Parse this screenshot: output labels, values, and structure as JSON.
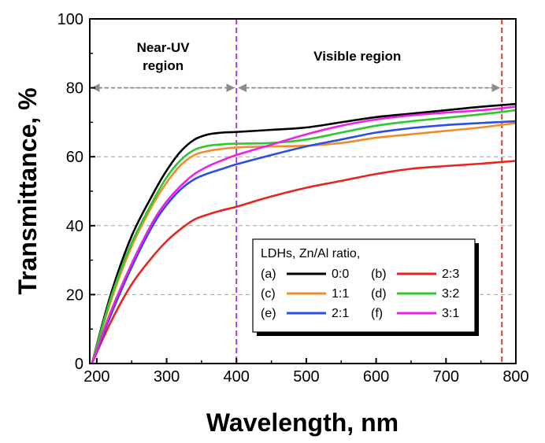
{
  "chart_data": {
    "type": "line",
    "xlabel": "Wavelength, nm",
    "ylabel": "Transmittance, %",
    "xlim": [
      190,
      800
    ],
    "ylim": [
      0,
      100
    ],
    "xticks": [
      200,
      300,
      400,
      500,
      600,
      700,
      800
    ],
    "yticks": [
      0,
      20,
      40,
      60,
      80,
      100
    ],
    "grid": "horizontal-dashed",
    "regions": [
      {
        "label_lines": [
          "Near-UV",
          "region"
        ],
        "from": 190,
        "to": 400
      },
      {
        "label_lines": [
          "Visible region"
        ],
        "from": 400,
        "to": 780
      }
    ],
    "vlines": [
      {
        "x": 400,
        "color": "#9b30d9"
      },
      {
        "x": 780,
        "color": "#e8241c"
      }
    ],
    "legend": {
      "title": "LDHs, Zn/Al ratio,",
      "position": "lower-right"
    },
    "series": [
      {
        "id": "a",
        "tag": "(a)",
        "ratio": "0:0",
        "color": "#000000",
        "x": [
          193,
          220,
          250,
          280,
          300,
          320,
          340,
          360,
          380,
          400,
          450,
          500,
          550,
          600,
          650,
          700,
          750,
          800
        ],
        "y": [
          0,
          20,
          37,
          49,
          56,
          61.5,
          65,
          66.5,
          67,
          67.2,
          67.8,
          68.5,
          70,
          71.5,
          72.5,
          73.5,
          74.5,
          75.3
        ]
      },
      {
        "id": "b",
        "tag": "(b)",
        "ratio": "2:3",
        "color": "#e8241c",
        "x": [
          193,
          220,
          250,
          280,
          300,
          320,
          340,
          360,
          380,
          400,
          450,
          500,
          550,
          600,
          650,
          700,
          750,
          800
        ],
        "y": [
          0,
          12,
          23,
          31,
          35.5,
          39,
          41.8,
          43.3,
          44.5,
          45.5,
          48.5,
          51,
          53,
          55,
          56.5,
          57.3,
          58,
          58.8
        ]
      },
      {
        "id": "c",
        "tag": "(c)",
        "ratio": "1:1",
        "color": "#f28c28",
        "x": [
          193,
          220,
          250,
          280,
          300,
          320,
          340,
          360,
          380,
          400,
          450,
          500,
          550,
          600,
          650,
          700,
          750,
          800
        ],
        "y": [
          0,
          18,
          34,
          46,
          52.5,
          57.5,
          60.5,
          61.7,
          62.3,
          62.7,
          63,
          63.2,
          64,
          65.5,
          66.5,
          67.5,
          68.5,
          69.8
        ]
      },
      {
        "id": "d",
        "tag": "(d)",
        "ratio": "3:2",
        "color": "#2ec82e",
        "x": [
          193,
          220,
          250,
          280,
          300,
          320,
          340,
          360,
          380,
          400,
          450,
          500,
          550,
          600,
          650,
          700,
          750,
          800
        ],
        "y": [
          0,
          19,
          35,
          47,
          54,
          59,
          62,
          63.2,
          63.6,
          63.8,
          64,
          65,
          67,
          69,
          70.3,
          71.3,
          72.3,
          73.5
        ]
      },
      {
        "id": "e",
        "tag": "(e)",
        "ratio": "2:1",
        "color": "#2a4ee8",
        "x": [
          193,
          220,
          250,
          280,
          300,
          320,
          340,
          360,
          380,
          400,
          450,
          500,
          550,
          600,
          650,
          700,
          750,
          800
        ],
        "y": [
          0,
          14,
          28,
          40,
          46,
          50.5,
          53.5,
          55.2,
          56.5,
          57.8,
          60.5,
          63,
          65,
          67,
          68.3,
          69.2,
          69.8,
          70.3
        ]
      },
      {
        "id": "f",
        "tag": "(f)",
        "ratio": "3:1",
        "color": "#f020e8",
        "x": [
          193,
          220,
          250,
          280,
          300,
          320,
          340,
          360,
          380,
          400,
          450,
          500,
          550,
          600,
          650,
          700,
          750,
          800
        ],
        "y": [
          0,
          15,
          29,
          41,
          47,
          51.5,
          55,
          57.3,
          59,
          60.5,
          63.5,
          66.5,
          69,
          70.8,
          72,
          72.8,
          73.5,
          74.5
        ]
      }
    ]
  }
}
